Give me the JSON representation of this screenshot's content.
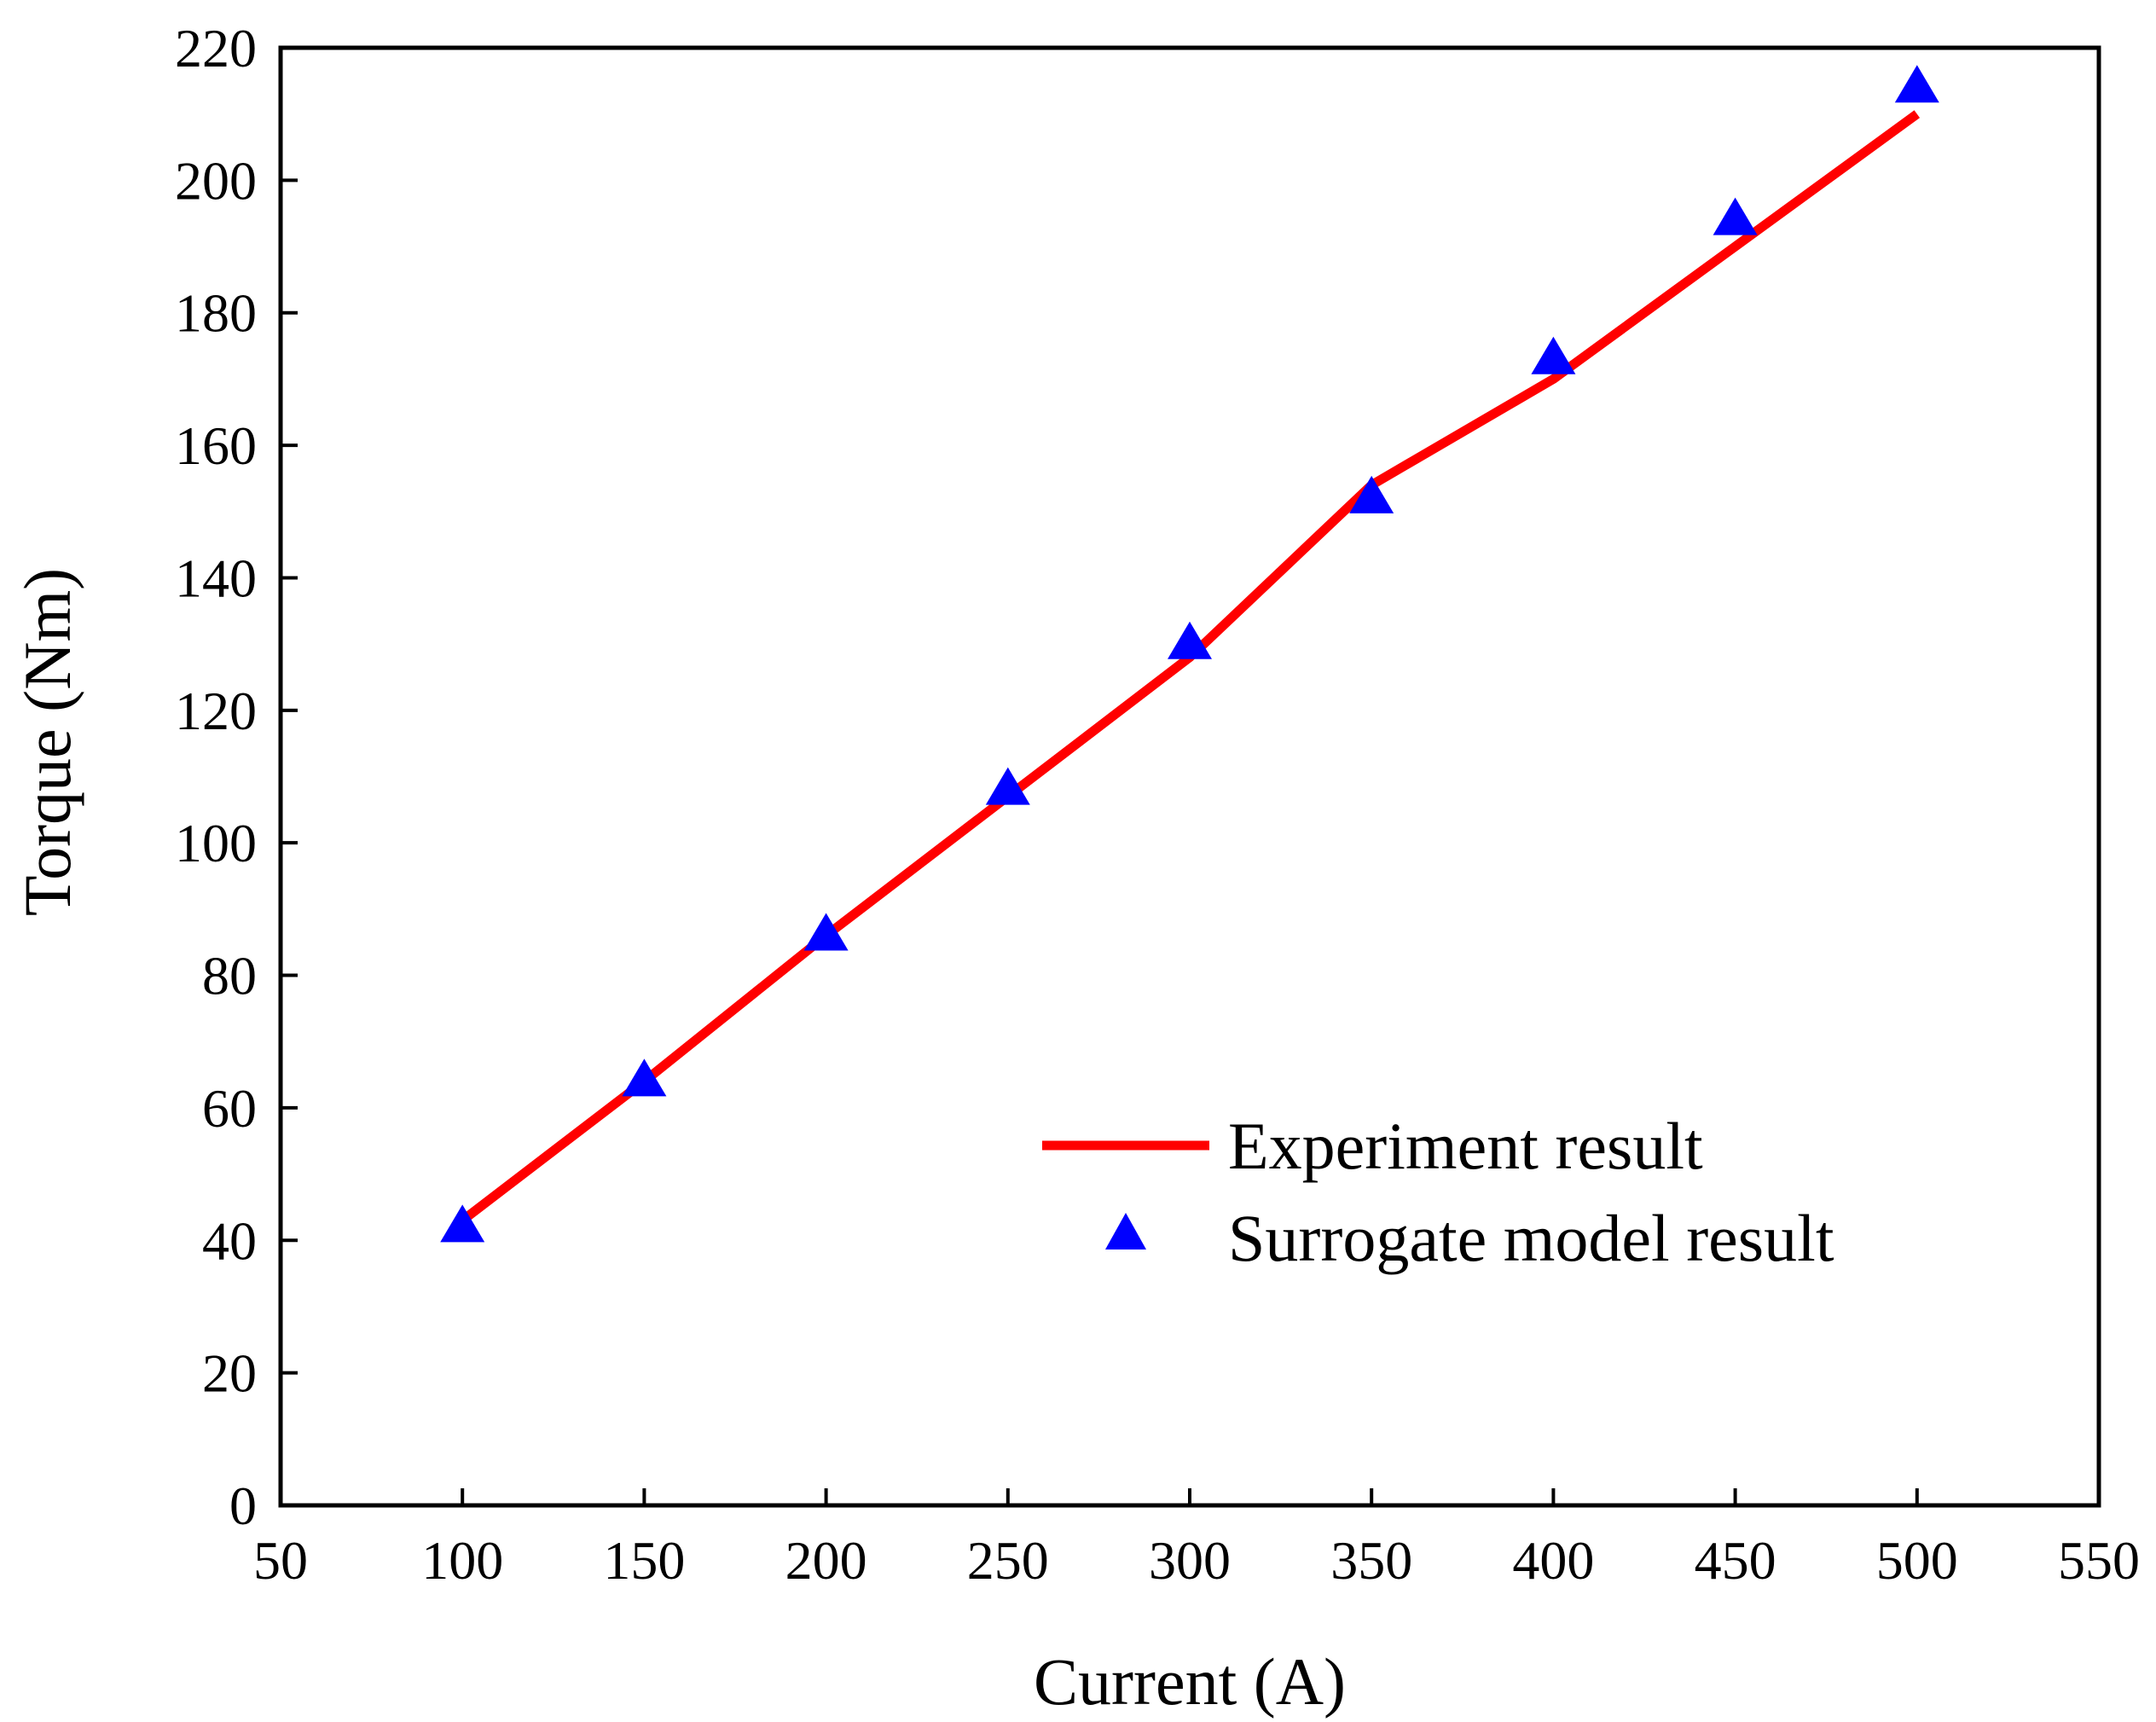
{
  "chart_data": {
    "type": "line",
    "title": "",
    "xlabel": "Current (A)",
    "ylabel": "Torque (Nm)",
    "xlim": [
      50,
      550
    ],
    "ylim": [
      0,
      220
    ],
    "xticks": [
      50,
      100,
      150,
      200,
      250,
      300,
      350,
      400,
      450,
      500,
      550
    ],
    "yticks": [
      0,
      20,
      40,
      60,
      80,
      100,
      120,
      140,
      160,
      180,
      200,
      220
    ],
    "grid": false,
    "legend_position": "lower-right",
    "x": [
      100,
      150,
      200,
      250,
      300,
      350,
      400,
      450,
      500
    ],
    "series": [
      {
        "name": "Experiment result",
        "style": "line",
        "color": "#ff0000",
        "values": [
          43,
          64,
          86,
          107,
          128,
          154,
          170,
          190,
          210
        ]
      },
      {
        "name": "Surrogate model result",
        "style": "marker-triangle",
        "color": "#0000ff",
        "values": [
          42,
          64,
          86,
          108,
          130,
          152,
          173,
          194,
          214
        ]
      }
    ]
  }
}
